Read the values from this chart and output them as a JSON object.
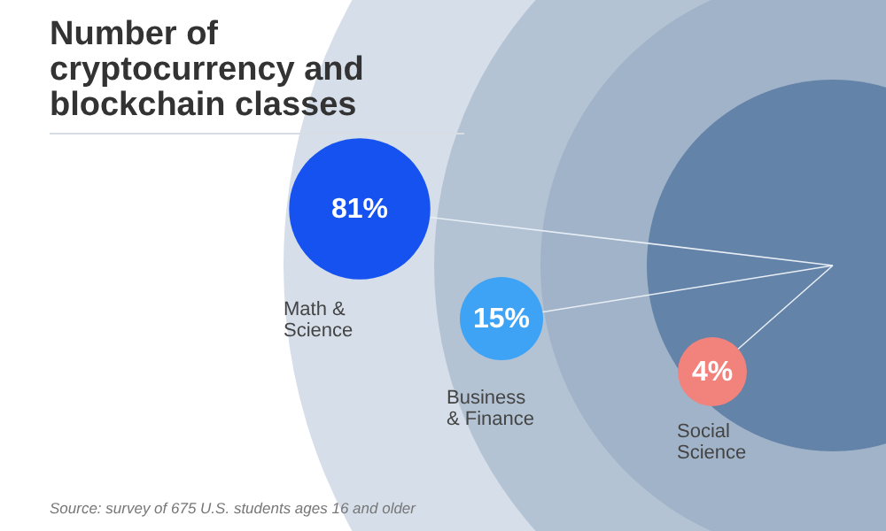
{
  "chart_data": {
    "type": "other",
    "title": "Number of cryptocurrency and blockchain classes",
    "categories": [
      "Math & Science",
      "Business & Finance",
      "Social Science"
    ],
    "values": [
      81,
      15,
      4
    ],
    "value_labels": [
      "81%",
      "15%",
      "4%"
    ],
    "colors": [
      "#1652f0",
      "#3fa3f5",
      "#f2837c"
    ],
    "annotations": [
      "Source: survey of 675 U.S. students ages 16 and older"
    ]
  }
}
